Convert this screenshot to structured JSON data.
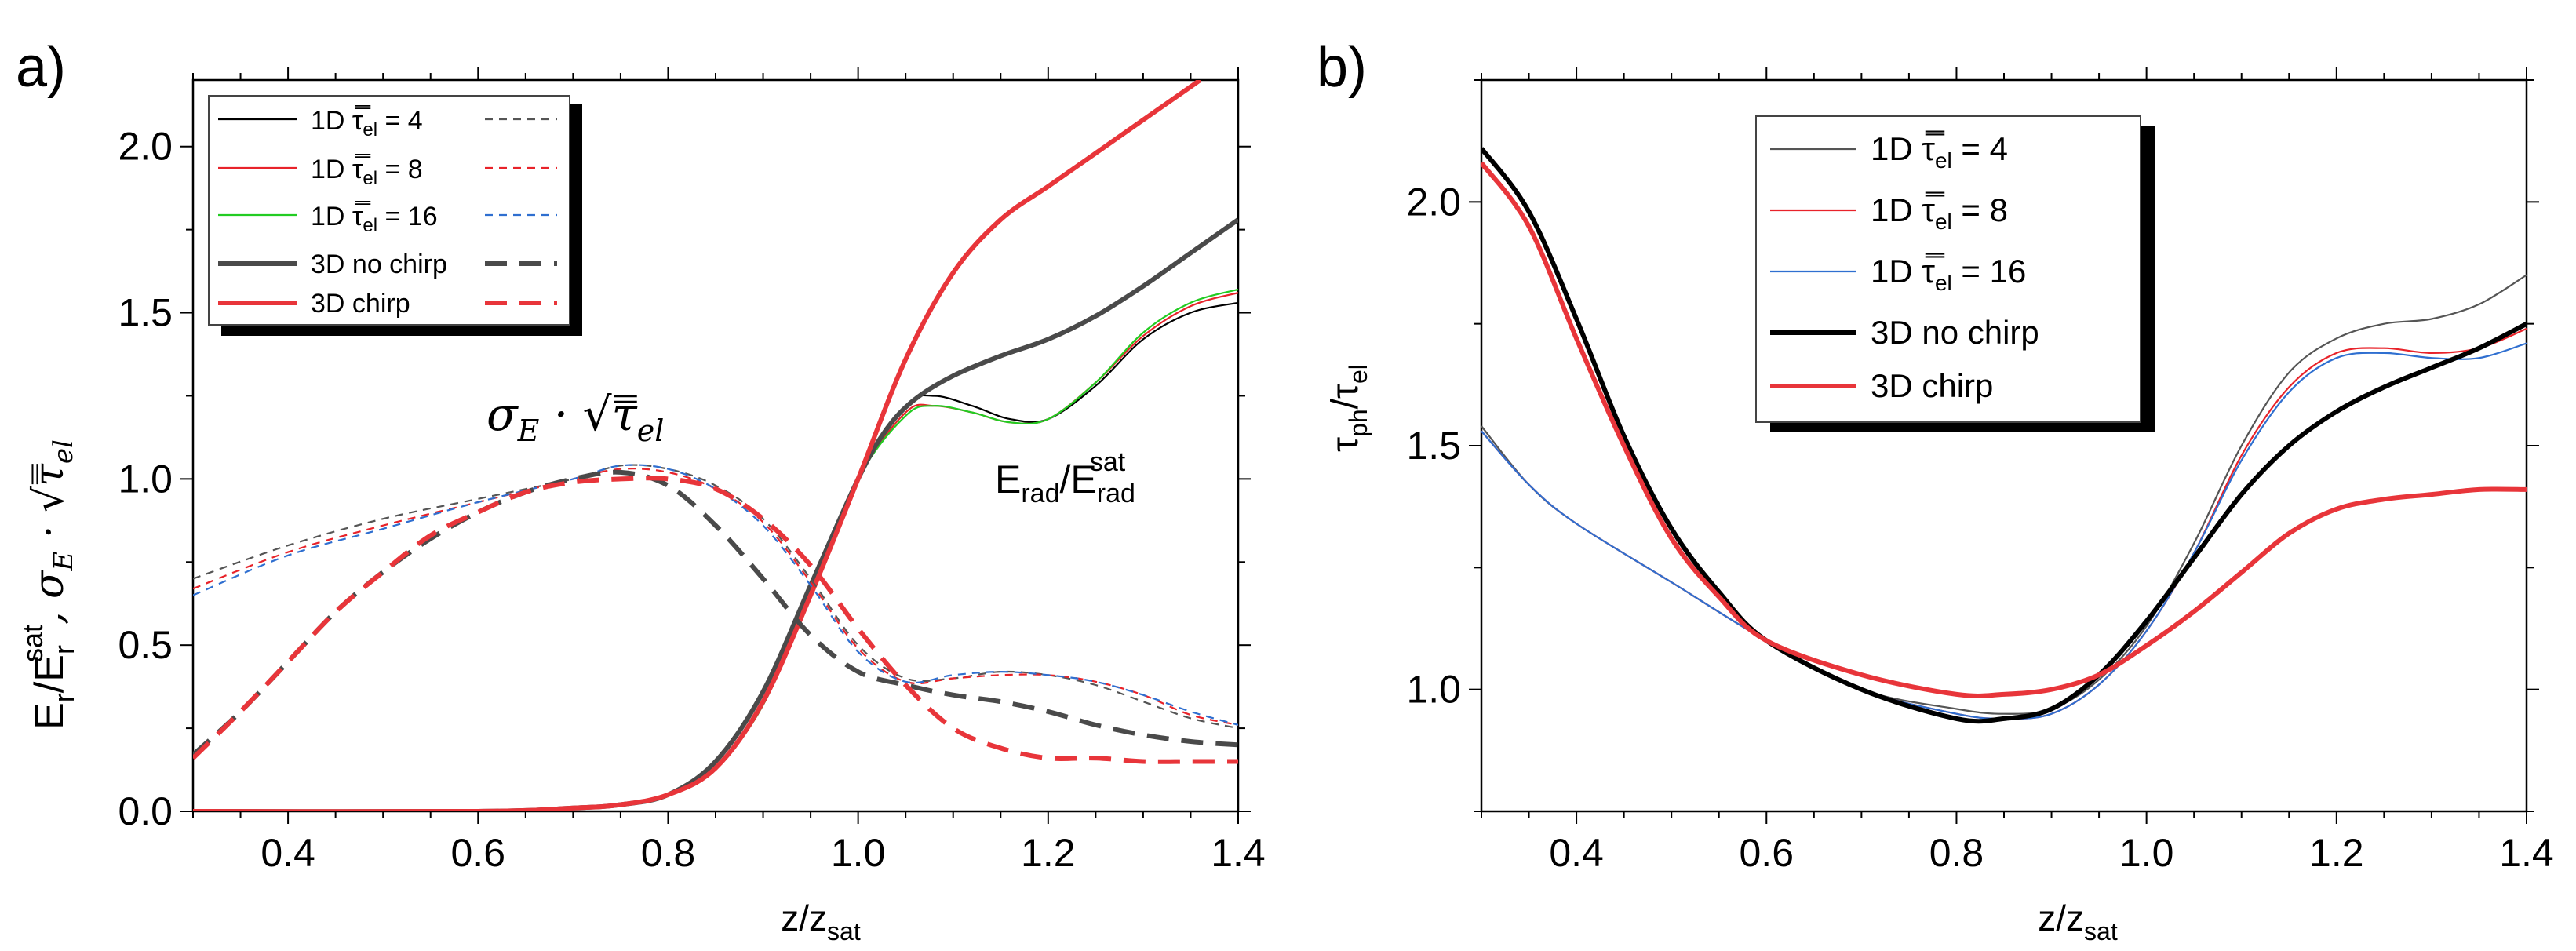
{
  "panels": [
    {
      "label": "a)",
      "ylabel_main": "E",
      "ylabel_sub": "r",
      "ylabel_sup": "sat",
      "ylabel_slash": "/E",
      "ylabel_math": ", σ",
      "ylabel_math_sub": "E",
      "ylabel_math_rest": " · √τ̿",
      "ylabel_math_rest_sub": "el",
      "xlabel_main": "z/z",
      "xlabel_sub": "sat",
      "annotation_sigma": "σ",
      "annotation_sigma_sub": "E",
      "annotation_sigma_rest": " · √τ̿",
      "annotation_sigma_rest_sub": "el",
      "annotation_erad": "E",
      "annotation_erad_sub": "rad",
      "annotation_erad_slash": "/E",
      "annotation_erad_sub2": "rad",
      "annotation_erad_sup2": "sat",
      "legend": [
        {
          "prefix": "1D ",
          "tau": "τ̿",
          "tau_sub": "el",
          "suffix": " = 4"
        },
        {
          "prefix": "1D ",
          "tau": "τ̿",
          "tau_sub": "el",
          "suffix": " = 8"
        },
        {
          "prefix": "1D ",
          "tau": "τ̿",
          "tau_sub": "el",
          "suffix": " = 16"
        },
        {
          "prefix": "3D no chirp",
          "tau": "",
          "tau_sub": "",
          "suffix": ""
        },
        {
          "prefix": "3D chirp",
          "tau": "",
          "tau_sub": "",
          "suffix": ""
        }
      ]
    },
    {
      "label": "b)",
      "ylabel_main": "τ",
      "ylabel_sub": "ph",
      "ylabel_slash": "/τ",
      "ylabel_sub2": "el",
      "xlabel_main": "z/z",
      "xlabel_sub": "sat",
      "legend": [
        {
          "prefix": "1D ",
          "tau": "τ̿",
          "tau_sub": "el",
          "suffix": " = 4"
        },
        {
          "prefix": "1D ",
          "tau": "τ̿",
          "tau_sub": "el",
          "suffix": " = 8"
        },
        {
          "prefix": "1D ",
          "tau": "τ̿",
          "tau_sub": "el",
          "suffix": " = 16"
        },
        {
          "prefix": "3D no chirp",
          "tau": "",
          "tau_sub": "",
          "suffix": ""
        },
        {
          "prefix": "3D chirp",
          "tau": "",
          "tau_sub": "",
          "suffix": ""
        }
      ]
    }
  ],
  "colors": {
    "black": "#000000",
    "red": "#e8232a",
    "green": "#22cc22",
    "blue": "#2f6fd0",
    "dark_gray": "#4a4a4a",
    "thick_red": "#e8353a",
    "gray": "#555555"
  },
  "chart_data": [
    {
      "type": "line",
      "title": "",
      "xlabel": "z/z_sat",
      "ylabel": "E_r/E_r^sat, σ_E · sqrt(τ_el)",
      "xlim": [
        0.3,
        1.4
      ],
      "ylim": [
        0.0,
        2.2
      ],
      "xticks": [
        0.4,
        0.6,
        0.8,
        1.0,
        1.2,
        1.4
      ],
      "xtick_labels": [
        "0.4",
        "0.6",
        "0.8",
        "1.0",
        "1.2",
        "1.4"
      ],
      "yticks": [
        0.0,
        0.5,
        1.0,
        1.5,
        2.0
      ],
      "ytick_labels": [
        "0.0",
        "0.5",
        "1.0",
        "1.5",
        "2.0"
      ],
      "series": [
        {
          "name": "1D τ_el = 4 (E_rad)",
          "color": "black",
          "width": 2.2,
          "dash": "",
          "x": [
            0.3,
            0.6,
            0.7,
            0.75,
            0.8,
            0.85,
            0.9,
            0.95,
            1.0,
            1.05,
            1.08,
            1.12,
            1.16,
            1.2,
            1.25,
            1.3,
            1.35,
            1.4
          ],
          "y": [
            0,
            0,
            0.01,
            0.02,
            0.05,
            0.13,
            0.32,
            0.65,
            1.0,
            1.22,
            1.25,
            1.22,
            1.18,
            1.18,
            1.28,
            1.42,
            1.5,
            1.53
          ]
        },
        {
          "name": "1D τ_el = 8 (E_rad)",
          "color": "red",
          "width": 2.2,
          "dash": "",
          "x": [
            0.3,
            0.6,
            0.7,
            0.75,
            0.8,
            0.85,
            0.9,
            0.95,
            1.0,
            1.05,
            1.08,
            1.12,
            1.16,
            1.2,
            1.25,
            1.3,
            1.35,
            1.4
          ],
          "y": [
            0,
            0,
            0.01,
            0.02,
            0.05,
            0.13,
            0.32,
            0.65,
            1.0,
            1.2,
            1.22,
            1.2,
            1.17,
            1.18,
            1.29,
            1.43,
            1.52,
            1.56
          ]
        },
        {
          "name": "1D τ_el = 16 (E_rad)",
          "color": "green",
          "width": 2.2,
          "dash": "",
          "x": [
            0.3,
            0.6,
            0.7,
            0.75,
            0.8,
            0.85,
            0.9,
            0.95,
            1.0,
            1.05,
            1.08,
            1.12,
            1.16,
            1.2,
            1.25,
            1.3,
            1.35,
            1.4
          ],
          "y": [
            0,
            0,
            0.01,
            0.02,
            0.05,
            0.13,
            0.32,
            0.65,
            1.0,
            1.19,
            1.22,
            1.2,
            1.17,
            1.18,
            1.29,
            1.44,
            1.53,
            1.57
          ]
        },
        {
          "name": "3D no chirp (E_rad)",
          "color": "dark_gray",
          "width": 6,
          "dash": "",
          "x": [
            0.3,
            0.6,
            0.7,
            0.75,
            0.8,
            0.85,
            0.9,
            0.95,
            1.0,
            1.03,
            1.06,
            1.1,
            1.15,
            1.2,
            1.25,
            1.3,
            1.35,
            1.4
          ],
          "y": [
            0,
            0,
            0.01,
            0.02,
            0.05,
            0.15,
            0.36,
            0.68,
            1.0,
            1.15,
            1.24,
            1.31,
            1.37,
            1.42,
            1.49,
            1.58,
            1.68,
            1.78
          ]
        },
        {
          "name": "3D chirp (E_rad)",
          "color": "thick_red",
          "width": 6,
          "dash": "",
          "x": [
            0.3,
            0.6,
            0.7,
            0.75,
            0.8,
            0.85,
            0.9,
            0.95,
            1.0,
            1.05,
            1.1,
            1.15,
            1.2,
            1.25,
            1.3,
            1.35,
            1.36
          ],
          "y": [
            0,
            0,
            0.01,
            0.02,
            0.05,
            0.13,
            0.33,
            0.65,
            1.0,
            1.36,
            1.62,
            1.78,
            1.88,
            1.98,
            2.08,
            2.18,
            2.2
          ]
        },
        {
          "name": "1D τ_el = 4 (σ_E)",
          "color": "gray",
          "width": 2.2,
          "dash": "10,8",
          "x": [
            0.3,
            0.4,
            0.5,
            0.6,
            0.7,
            0.75,
            0.8,
            0.85,
            0.9,
            0.95,
            1.0,
            1.05,
            1.1,
            1.15,
            1.2,
            1.25,
            1.3,
            1.35,
            1.4
          ],
          "y": [
            0.7,
            0.8,
            0.88,
            0.94,
            1.0,
            1.04,
            1.03,
            0.98,
            0.88,
            0.7,
            0.5,
            0.4,
            0.4,
            0.42,
            0.41,
            0.38,
            0.33,
            0.28,
            0.25
          ]
        },
        {
          "name": "1D τ_el = 8 (σ_E)",
          "color": "red",
          "width": 2.2,
          "dash": "10,8",
          "x": [
            0.3,
            0.4,
            0.5,
            0.6,
            0.7,
            0.75,
            0.8,
            0.85,
            0.9,
            0.95,
            1.0,
            1.05,
            1.1,
            1.15,
            1.2,
            1.25,
            1.3,
            1.35,
            1.4
          ],
          "y": [
            0.67,
            0.78,
            0.86,
            0.93,
            1.0,
            1.03,
            1.02,
            0.97,
            0.87,
            0.69,
            0.49,
            0.39,
            0.4,
            0.41,
            0.41,
            0.39,
            0.35,
            0.29,
            0.26
          ]
        },
        {
          "name": "1D τ_el = 16 (σ_E)",
          "color": "blue",
          "width": 2.2,
          "dash": "10,8",
          "x": [
            0.3,
            0.4,
            0.5,
            0.6,
            0.7,
            0.75,
            0.8,
            0.85,
            0.9,
            0.95,
            1.0,
            1.05,
            1.1,
            1.15,
            1.2,
            1.25,
            1.3,
            1.35,
            1.4
          ],
          "y": [
            0.65,
            0.77,
            0.85,
            0.93,
            1.0,
            1.04,
            1.03,
            0.97,
            0.86,
            0.68,
            0.48,
            0.39,
            0.41,
            0.42,
            0.41,
            0.39,
            0.35,
            0.3,
            0.26
          ]
        },
        {
          "name": "3D no chirp (σ_E)",
          "color": "dark_gray",
          "width": 6,
          "dash": "28,16",
          "x": [
            0.3,
            0.35,
            0.4,
            0.45,
            0.5,
            0.55,
            0.6,
            0.65,
            0.7,
            0.75,
            0.8,
            0.85,
            0.9,
            0.95,
            1.0,
            1.05,
            1.1,
            1.15,
            1.2,
            1.25,
            1.3,
            1.35,
            1.4
          ],
          "y": [
            0.17,
            0.3,
            0.45,
            0.6,
            0.72,
            0.82,
            0.9,
            0.96,
            1.0,
            1.02,
            0.98,
            0.86,
            0.7,
            0.53,
            0.42,
            0.38,
            0.35,
            0.33,
            0.3,
            0.26,
            0.23,
            0.21,
            0.2
          ]
        },
        {
          "name": "3D chirp (σ_E)",
          "color": "thick_red",
          "width": 6,
          "dash": "28,16",
          "x": [
            0.3,
            0.35,
            0.4,
            0.45,
            0.5,
            0.55,
            0.6,
            0.65,
            0.7,
            0.75,
            0.8,
            0.85,
            0.9,
            0.95,
            1.0,
            1.05,
            1.1,
            1.15,
            1.2,
            1.25,
            1.3,
            1.35,
            1.4
          ],
          "y": [
            0.16,
            0.3,
            0.45,
            0.6,
            0.72,
            0.83,
            0.9,
            0.96,
            0.99,
            1.0,
            1.0,
            0.97,
            0.88,
            0.74,
            0.55,
            0.38,
            0.25,
            0.19,
            0.16,
            0.16,
            0.15,
            0.15,
            0.15
          ]
        }
      ]
    },
    {
      "type": "line",
      "title": "",
      "xlabel": "z/z_sat",
      "ylabel": "τ_ph/τ_el",
      "xlim": [
        0.3,
        1.4
      ],
      "ylim": [
        0.75,
        2.25
      ],
      "xticks": [
        0.4,
        0.6,
        0.8,
        1.0,
        1.2,
        1.4
      ],
      "xtick_labels": [
        "0.4",
        "0.6",
        "0.8",
        "1.0",
        "1.2",
        "1.4"
      ],
      "yticks": [
        1.0,
        1.5,
        2.0
      ],
      "ytick_labels": [
        "1.0",
        "1.5",
        "2.0"
      ],
      "series": [
        {
          "name": "1D τ_el = 4",
          "color": "gray",
          "width": 2.2,
          "dash": "",
          "x": [
            0.3,
            0.35,
            0.4,
            0.5,
            0.6,
            0.7,
            0.8,
            0.85,
            0.9,
            0.95,
            1.0,
            1.05,
            1.1,
            1.15,
            1.2,
            1.25,
            1.3,
            1.35,
            1.4
          ],
          "y": [
            1.54,
            1.42,
            1.34,
            1.22,
            1.1,
            1.0,
            0.96,
            0.95,
            0.96,
            1.02,
            1.13,
            1.3,
            1.5,
            1.65,
            1.72,
            1.75,
            1.76,
            1.79,
            1.85
          ]
        },
        {
          "name": "1D τ_el = 8",
          "color": "red",
          "width": 2.2,
          "dash": "",
          "x": [
            0.3,
            0.35,
            0.4,
            0.5,
            0.6,
            0.7,
            0.8,
            0.85,
            0.9,
            0.95,
            1.0,
            1.05,
            1.1,
            1.15,
            1.2,
            1.25,
            1.3,
            1.35,
            1.4
          ],
          "y": [
            1.53,
            1.42,
            1.34,
            1.22,
            1.1,
            1.0,
            0.95,
            0.94,
            0.95,
            1.01,
            1.12,
            1.28,
            1.48,
            1.62,
            1.69,
            1.7,
            1.69,
            1.7,
            1.74
          ]
        },
        {
          "name": "1D τ_el = 16",
          "color": "blue",
          "width": 2.2,
          "dash": "",
          "x": [
            0.3,
            0.35,
            0.4,
            0.5,
            0.6,
            0.7,
            0.8,
            0.85,
            0.9,
            0.95,
            1.0,
            1.05,
            1.1,
            1.15,
            1.2,
            1.25,
            1.3,
            1.35,
            1.4
          ],
          "y": [
            1.53,
            1.42,
            1.34,
            1.22,
            1.1,
            1.0,
            0.95,
            0.94,
            0.95,
            1.01,
            1.12,
            1.28,
            1.47,
            1.61,
            1.68,
            1.69,
            1.68,
            1.68,
            1.71
          ]
        },
        {
          "name": "3D no chirp",
          "color": "black",
          "width": 6,
          "dash": "",
          "x": [
            0.3,
            0.35,
            0.4,
            0.45,
            0.5,
            0.55,
            0.6,
            0.7,
            0.8,
            0.85,
            0.9,
            0.95,
            1.0,
            1.05,
            1.1,
            1.15,
            1.2,
            1.25,
            1.3,
            1.35,
            1.4
          ],
          "y": [
            2.11,
            1.98,
            1.76,
            1.52,
            1.33,
            1.2,
            1.1,
            1.0,
            0.94,
            0.94,
            0.96,
            1.03,
            1.14,
            1.27,
            1.4,
            1.5,
            1.57,
            1.62,
            1.66,
            1.7,
            1.75
          ]
        },
        {
          "name": "3D chirp",
          "color": "thick_red",
          "width": 6,
          "dash": "",
          "x": [
            0.3,
            0.35,
            0.4,
            0.45,
            0.5,
            0.55,
            0.6,
            0.7,
            0.8,
            0.85,
            0.9,
            0.95,
            1.0,
            1.05,
            1.1,
            1.15,
            1.2,
            1.25,
            1.3,
            1.35,
            1.4
          ],
          "y": [
            2.08,
            1.95,
            1.72,
            1.5,
            1.31,
            1.19,
            1.1,
            1.03,
            0.99,
            0.99,
            1.0,
            1.03,
            1.09,
            1.16,
            1.24,
            1.32,
            1.37,
            1.39,
            1.4,
            1.41,
            1.41
          ]
        }
      ]
    }
  ]
}
